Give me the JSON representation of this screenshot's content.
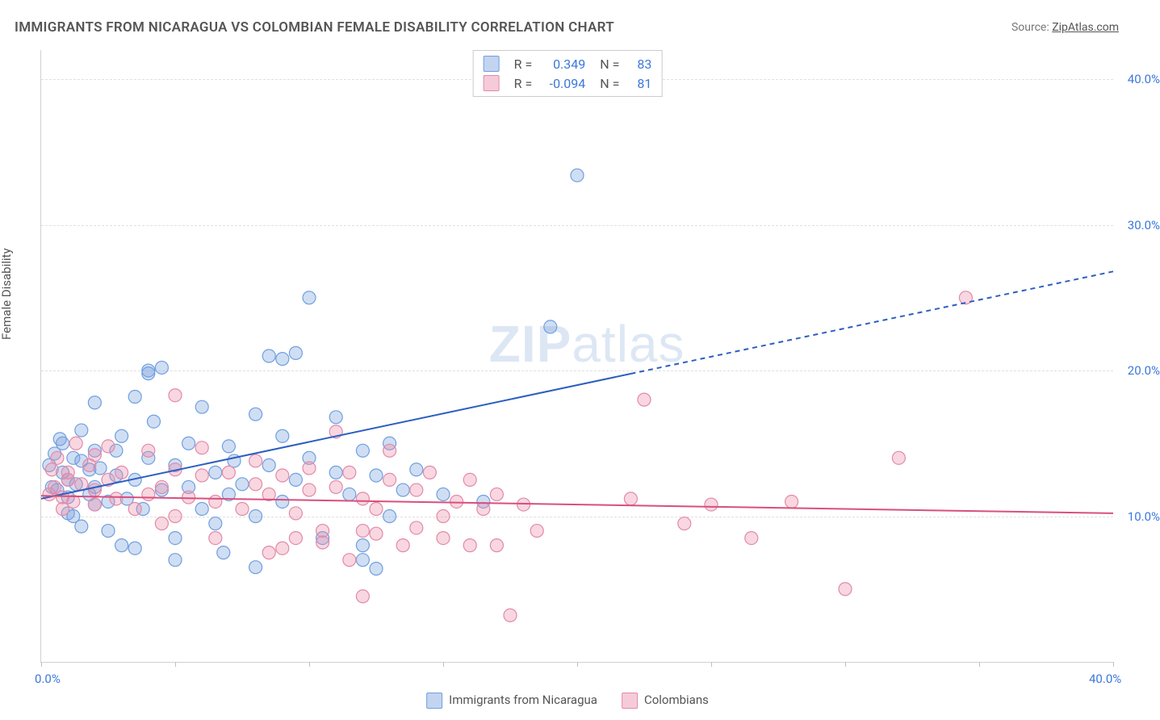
{
  "title": "IMMIGRANTS FROM NICARAGUA VS COLOMBIAN FEMALE DISABILITY CORRELATION CHART",
  "source_prefix": "Source: ",
  "source_name": "ZipAtlas.com",
  "ylabel": "Female Disability",
  "watermark": {
    "zip": "ZIP",
    "atlas": "atlas"
  },
  "chart": {
    "type": "scatter",
    "xlim": [
      0,
      40
    ],
    "ylim": [
      0,
      42
    ],
    "x_ticks": [
      0,
      5,
      10,
      15,
      20,
      25,
      30,
      35,
      40
    ],
    "x_tick_labels": {
      "0": "0.0%",
      "40": "40.0%"
    },
    "y_gridlines": [
      10,
      20,
      30,
      40
    ],
    "y_tick_labels": {
      "10": "10.0%",
      "20": "20.0%",
      "30": "30.0%",
      "40": "40.0%"
    },
    "background_color": "#ffffff",
    "grid_color": "#e0e0e0",
    "axis_color": "#d0d0d0",
    "tick_label_color": "#3b78dc",
    "text_color": "#555555",
    "marker_radius": 8,
    "marker_stroke_width": 1.2,
    "series": [
      {
        "name": "Immigrants from Nicaragua",
        "fill": "rgba(120,160,220,0.35)",
        "stroke": "#6f9fe0",
        "r_value": "0.349",
        "n_value": "83",
        "regression": {
          "x1": 0,
          "y1": 11.2,
          "x2": 40,
          "y2": 26.8,
          "solid_until_x": 22,
          "color": "#2c5fc0",
          "width": 2,
          "dash": "6 5"
        },
        "points": [
          [
            0.3,
            13.5
          ],
          [
            0.4,
            12.0
          ],
          [
            0.5,
            14.3
          ],
          [
            0.6,
            11.8
          ],
          [
            0.8,
            13.0
          ],
          [
            0.8,
            15.0
          ],
          [
            1.0,
            12.5
          ],
          [
            1.0,
            10.2
          ],
          [
            1.2,
            14.0
          ],
          [
            1.3,
            12.2
          ],
          [
            1.5,
            13.8
          ],
          [
            1.5,
            15.9
          ],
          [
            1.5,
            9.3
          ],
          [
            1.8,
            11.5
          ],
          [
            1.8,
            13.2
          ],
          [
            2.0,
            10.8
          ],
          [
            2.0,
            12.0
          ],
          [
            2.0,
            14.5
          ],
          [
            2.2,
            13.3
          ],
          [
            2.5,
            11.0
          ],
          [
            2.5,
            9.0
          ],
          [
            2.8,
            12.8
          ],
          [
            3.0,
            15.5
          ],
          [
            3.0,
            8.0
          ],
          [
            3.2,
            11.2
          ],
          [
            3.5,
            12.5
          ],
          [
            3.5,
            18.2
          ],
          [
            3.8,
            10.5
          ],
          [
            4.0,
            14.0
          ],
          [
            4.0,
            20.0
          ],
          [
            4.2,
            16.5
          ],
          [
            4.5,
            11.8
          ],
          [
            4.5,
            20.2
          ],
          [
            5.0,
            13.5
          ],
          [
            5.0,
            8.5
          ],
          [
            5.0,
            7.0
          ],
          [
            5.5,
            12.0
          ],
          [
            5.5,
            15.0
          ],
          [
            6.0,
            10.5
          ],
          [
            6.0,
            17.5
          ],
          [
            6.5,
            13.0
          ],
          [
            6.5,
            9.5
          ],
          [
            7.0,
            11.5
          ],
          [
            7.0,
            14.8
          ],
          [
            7.5,
            12.2
          ],
          [
            8.0,
            17.0
          ],
          [
            8.0,
            10.0
          ],
          [
            8.0,
            6.5
          ],
          [
            8.5,
            13.5
          ],
          [
            8.5,
            21.0
          ],
          [
            9.0,
            11.0
          ],
          [
            9.0,
            15.5
          ],
          [
            9.0,
            20.8
          ],
          [
            9.5,
            12.5
          ],
          [
            9.5,
            21.2
          ],
          [
            10.0,
            14.0
          ],
          [
            10.0,
            25.0
          ],
          [
            10.5,
            8.5
          ],
          [
            11.0,
            13.0
          ],
          [
            11.0,
            16.8
          ],
          [
            11.5,
            11.5
          ],
          [
            12.0,
            14.5
          ],
          [
            12.0,
            7.0
          ],
          [
            12.0,
            8.0
          ],
          [
            12.5,
            6.4
          ],
          [
            12.5,
            12.8
          ],
          [
            13.0,
            10.0
          ],
          [
            13.0,
            15.0
          ],
          [
            13.5,
            11.8
          ],
          [
            14.0,
            13.2
          ],
          [
            15.0,
            11.5
          ],
          [
            16.5,
            11.0
          ],
          [
            19.0,
            23.0
          ],
          [
            20.0,
            33.4
          ],
          [
            4.0,
            19.8
          ],
          [
            2.8,
            14.5
          ],
          [
            6.8,
            7.5
          ],
          [
            7.2,
            13.8
          ],
          [
            3.5,
            7.8
          ],
          [
            2.0,
            17.8
          ],
          [
            1.2,
            10.0
          ],
          [
            0.7,
            15.3
          ],
          [
            1.0,
            11.3
          ]
        ]
      },
      {
        "name": "Colombians",
        "fill": "rgba(235,140,170,0.35)",
        "stroke": "#e389a8",
        "r_value": "-0.094",
        "n_value": "81",
        "regression": {
          "x1": 0,
          "y1": 11.4,
          "x2": 40,
          "y2": 10.2,
          "solid_until_x": 40,
          "color": "#d94f7d",
          "width": 2,
          "dash": "none"
        },
        "points": [
          [
            0.3,
            11.5
          ],
          [
            0.4,
            13.2
          ],
          [
            0.5,
            12.0
          ],
          [
            0.6,
            14.0
          ],
          [
            0.8,
            11.3
          ],
          [
            0.8,
            10.5
          ],
          [
            1.0,
            12.5
          ],
          [
            1.0,
            13.0
          ],
          [
            1.2,
            11.0
          ],
          [
            1.3,
            15.0
          ],
          [
            1.5,
            12.2
          ],
          [
            1.8,
            13.5
          ],
          [
            2.0,
            10.8
          ],
          [
            2.0,
            11.8
          ],
          [
            2.0,
            14.2
          ],
          [
            2.5,
            12.5
          ],
          [
            2.8,
            11.2
          ],
          [
            3.0,
            13.0
          ],
          [
            3.5,
            10.5
          ],
          [
            4.0,
            11.5
          ],
          [
            4.0,
            14.5
          ],
          [
            4.5,
            12.0
          ],
          [
            5.0,
            13.2
          ],
          [
            5.0,
            10.0
          ],
          [
            5.0,
            18.3
          ],
          [
            5.5,
            11.3
          ],
          [
            6.0,
            12.8
          ],
          [
            6.0,
            14.7
          ],
          [
            6.5,
            11.0
          ],
          [
            7.0,
            13.0
          ],
          [
            7.5,
            10.5
          ],
          [
            8.0,
            12.2
          ],
          [
            8.0,
            13.8
          ],
          [
            8.5,
            7.5
          ],
          [
            8.5,
            11.5
          ],
          [
            9.0,
            7.8
          ],
          [
            9.0,
            12.8
          ],
          [
            9.5,
            10.2
          ],
          [
            9.5,
            8.5
          ],
          [
            10.0,
            11.8
          ],
          [
            10.0,
            13.3
          ],
          [
            10.5,
            9.0
          ],
          [
            10.5,
            8.2
          ],
          [
            11.0,
            12.0
          ],
          [
            11.0,
            15.8
          ],
          [
            11.5,
            13.0
          ],
          [
            11.5,
            7.0
          ],
          [
            12.0,
            11.2
          ],
          [
            12.0,
            9.0
          ],
          [
            12.5,
            8.8
          ],
          [
            12.5,
            10.5
          ],
          [
            13.0,
            12.5
          ],
          [
            13.0,
            14.5
          ],
          [
            13.5,
            8.0
          ],
          [
            14.0,
            11.8
          ],
          [
            14.0,
            9.2
          ],
          [
            14.5,
            13.0
          ],
          [
            15.0,
            10.0
          ],
          [
            15.0,
            8.5
          ],
          [
            15.5,
            11.0
          ],
          [
            16.0,
            12.5
          ],
          [
            16.0,
            8.0
          ],
          [
            16.5,
            10.5
          ],
          [
            17.0,
            8.0
          ],
          [
            17.0,
            11.5
          ],
          [
            17.5,
            3.2
          ],
          [
            18.0,
            10.8
          ],
          [
            18.5,
            9.0
          ],
          [
            22.0,
            11.2
          ],
          [
            22.5,
            18.0
          ],
          [
            24.0,
            9.5
          ],
          [
            25.0,
            10.8
          ],
          [
            26.5,
            8.5
          ],
          [
            28.0,
            11.0
          ],
          [
            30.0,
            5.0
          ],
          [
            32.0,
            14.0
          ],
          [
            34.5,
            25.0
          ],
          [
            12.0,
            4.5
          ],
          [
            4.5,
            9.5
          ],
          [
            6.5,
            8.5
          ],
          [
            2.5,
            14.8
          ]
        ]
      }
    ]
  },
  "bottom_legend": {
    "items": [
      {
        "label": "Immigrants from Nicaragua",
        "fill": "rgba(120,160,220,0.45)",
        "border": "#6f9fe0"
      },
      {
        "label": "Colombians",
        "fill": "rgba(235,140,170,0.45)",
        "border": "#e389a8"
      }
    ]
  }
}
